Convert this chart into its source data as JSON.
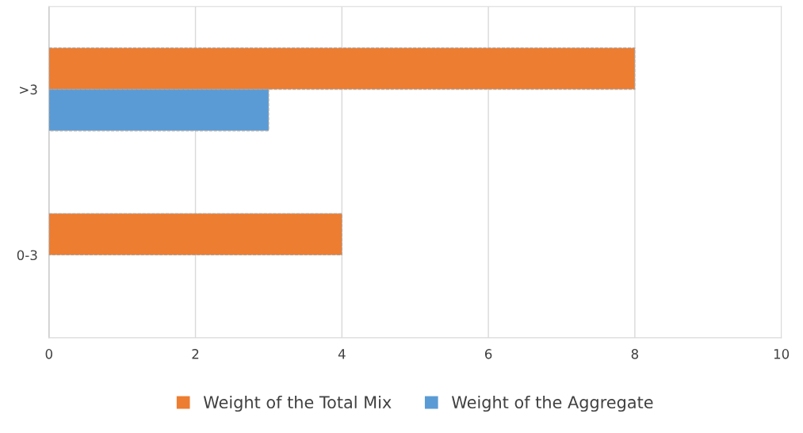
{
  "chart_data": {
    "type": "bar",
    "orientation": "horizontal",
    "categories": [
      ">3",
      "0-3"
    ],
    "series": [
      {
        "name": "Weight of the Total Mix",
        "color": "#ed7d31",
        "values": [
          8,
          4
        ]
      },
      {
        "name": "Weight of the Aggregate",
        "color": "#5b9bd5",
        "values": [
          3,
          null
        ]
      }
    ],
    "xlim": [
      0,
      10
    ],
    "xticks": [
      0,
      2,
      4,
      6,
      8,
      10
    ],
    "grid": "x",
    "legend": "bottom"
  }
}
